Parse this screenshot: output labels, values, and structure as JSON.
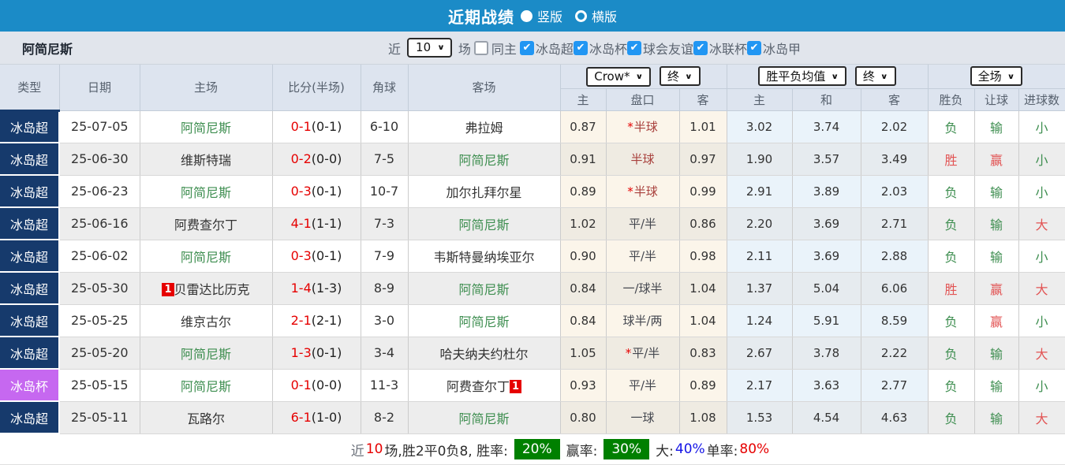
{
  "titlebar": {
    "title": "近期战绩",
    "radio_selected_label": "竖版",
    "radio_unselected_label": "横版"
  },
  "filterbar": {
    "team": "阿简尼斯",
    "near_label": "近",
    "games_value": "10",
    "games_label": "场",
    "same_home": {
      "label": "同主",
      "checked": false
    },
    "leagues": [
      {
        "label": "冰岛超",
        "checked": true
      },
      {
        "label": "冰岛杯",
        "checked": true
      },
      {
        "label": "球会友谊",
        "checked": true
      },
      {
        "label": "冰联杯",
        "checked": true
      },
      {
        "label": "冰岛甲",
        "checked": true
      }
    ]
  },
  "table": {
    "group_headers": [
      "类型",
      "日期",
      "主场",
      "比分(半场)",
      "角球",
      "客场"
    ],
    "selects": {
      "bookmaker": "Crow*",
      "ah_stage": "终",
      "eu_source": "胜平负均值",
      "eu_stage": "终",
      "scope": "全场"
    },
    "sub_headers": [
      "主",
      "盘口",
      "客",
      "主",
      "和",
      "客",
      "胜负",
      "让球",
      "进球数"
    ],
    "rows": [
      {
        "league": "冰岛超",
        "league_class": "super",
        "date": "25-07-05",
        "home": "阿简尼斯",
        "home_self": true,
        "home_badge": "",
        "score": "0-1",
        "half": "(0-1)",
        "corner": "6-10",
        "away": "弗拉姆",
        "away_self": false,
        "away_badge": "",
        "ah_home": "0.87",
        "ah_star": true,
        "ah_line": "半球",
        "ah_red": true,
        "ah_away": "1.01",
        "eu_home": "3.02",
        "eu_draw": "3.74",
        "eu_away": "2.02",
        "res_wdl": "负",
        "wdl_win": false,
        "res_ah": "输",
        "ah_win": false,
        "res_ou": "小",
        "ou_big": false
      },
      {
        "league": "冰岛超",
        "league_class": "super",
        "date": "25-06-30",
        "home": "维斯特瑞",
        "home_self": false,
        "home_badge": "",
        "score": "0-2",
        "half": "(0-0)",
        "corner": "7-5",
        "away": "阿简尼斯",
        "away_self": true,
        "away_badge": "",
        "ah_home": "0.91",
        "ah_star": false,
        "ah_line": "半球",
        "ah_red": true,
        "ah_away": "0.97",
        "eu_home": "1.90",
        "eu_draw": "3.57",
        "eu_away": "3.49",
        "res_wdl": "胜",
        "wdl_win": true,
        "res_ah": "赢",
        "ah_win": true,
        "res_ou": "小",
        "ou_big": false
      },
      {
        "league": "冰岛超",
        "league_class": "super",
        "date": "25-06-23",
        "home": "阿简尼斯",
        "home_self": true,
        "home_badge": "",
        "score": "0-3",
        "half": "(0-1)",
        "corner": "10-7",
        "away": "加尔扎拜尔星",
        "away_self": false,
        "away_badge": "",
        "ah_home": "0.89",
        "ah_star": true,
        "ah_line": "半球",
        "ah_red": true,
        "ah_away": "0.99",
        "eu_home": "2.91",
        "eu_draw": "3.89",
        "eu_away": "2.03",
        "res_wdl": "负",
        "wdl_win": false,
        "res_ah": "输",
        "ah_win": false,
        "res_ou": "小",
        "ou_big": false
      },
      {
        "league": "冰岛超",
        "league_class": "super",
        "date": "25-06-16",
        "home": "阿费查尔丁",
        "home_self": false,
        "home_badge": "",
        "score": "4-1",
        "half": "(1-1)",
        "corner": "7-3",
        "away": "阿简尼斯",
        "away_self": true,
        "away_badge": "",
        "ah_home": "1.02",
        "ah_star": false,
        "ah_line": "平/半",
        "ah_red": false,
        "ah_away": "0.86",
        "eu_home": "2.20",
        "eu_draw": "3.69",
        "eu_away": "2.71",
        "res_wdl": "负",
        "wdl_win": false,
        "res_ah": "输",
        "ah_win": false,
        "res_ou": "大",
        "ou_big": true
      },
      {
        "league": "冰岛超",
        "league_class": "super",
        "date": "25-06-02",
        "home": "阿简尼斯",
        "home_self": true,
        "home_badge": "",
        "score": "0-3",
        "half": "(0-1)",
        "corner": "7-9",
        "away": "韦斯特曼纳埃亚尔",
        "away_self": false,
        "away_badge": "",
        "ah_home": "0.90",
        "ah_star": false,
        "ah_line": "平/半",
        "ah_red": false,
        "ah_away": "0.98",
        "eu_home": "2.11",
        "eu_draw": "3.69",
        "eu_away": "2.88",
        "res_wdl": "负",
        "wdl_win": false,
        "res_ah": "输",
        "ah_win": false,
        "res_ou": "小",
        "ou_big": false
      },
      {
        "league": "冰岛超",
        "league_class": "super",
        "date": "25-05-30",
        "home": "贝雷达比历克",
        "home_self": false,
        "home_badge": "1",
        "score": "1-4",
        "half": "(1-3)",
        "corner": "8-9",
        "away": "阿简尼斯",
        "away_self": true,
        "away_badge": "",
        "ah_home": "0.84",
        "ah_star": false,
        "ah_line": "一/球半",
        "ah_red": false,
        "ah_away": "1.04",
        "eu_home": "1.37",
        "eu_draw": "5.04",
        "eu_away": "6.06",
        "res_wdl": "胜",
        "wdl_win": true,
        "res_ah": "赢",
        "ah_win": true,
        "res_ou": "大",
        "ou_big": true
      },
      {
        "league": "冰岛超",
        "league_class": "super",
        "date": "25-05-25",
        "home": "维京古尔",
        "home_self": false,
        "home_badge": "",
        "score": "2-1",
        "half": "(2-1)",
        "corner": "3-0",
        "away": "阿简尼斯",
        "away_self": true,
        "away_badge": "",
        "ah_home": "0.84",
        "ah_star": false,
        "ah_line": "球半/两",
        "ah_red": false,
        "ah_away": "1.04",
        "eu_home": "1.24",
        "eu_draw": "5.91",
        "eu_away": "8.59",
        "res_wdl": "负",
        "wdl_win": false,
        "res_ah": "赢",
        "ah_win": true,
        "res_ou": "小",
        "ou_big": false
      },
      {
        "league": "冰岛超",
        "league_class": "super",
        "date": "25-05-20",
        "home": "阿简尼斯",
        "home_self": true,
        "home_badge": "",
        "score": "1-3",
        "half": "(0-1)",
        "corner": "3-4",
        "away": "哈夫纳夫约杜尔",
        "away_self": false,
        "away_badge": "",
        "ah_home": "1.05",
        "ah_star": true,
        "ah_line": "平/半",
        "ah_red": false,
        "ah_away": "0.83",
        "eu_home": "2.67",
        "eu_draw": "3.78",
        "eu_away": "2.22",
        "res_wdl": "负",
        "wdl_win": false,
        "res_ah": "输",
        "ah_win": false,
        "res_ou": "大",
        "ou_big": true
      },
      {
        "league": "冰岛杯",
        "league_class": "cup",
        "date": "25-05-15",
        "home": "阿简尼斯",
        "home_self": true,
        "home_badge": "",
        "score": "0-1",
        "half": "(0-0)",
        "corner": "11-3",
        "away": "阿费查尔丁",
        "away_self": false,
        "away_badge": "1",
        "ah_home": "0.93",
        "ah_star": false,
        "ah_line": "平/半",
        "ah_red": false,
        "ah_away": "0.89",
        "eu_home": "2.17",
        "eu_draw": "3.63",
        "eu_away": "2.77",
        "res_wdl": "负",
        "wdl_win": false,
        "res_ah": "输",
        "ah_win": false,
        "res_ou": "小",
        "ou_big": false
      },
      {
        "league": "冰岛超",
        "league_class": "super",
        "date": "25-05-11",
        "home": "瓦路尔",
        "home_self": false,
        "home_badge": "",
        "score": "6-1",
        "half": "(1-0)",
        "corner": "8-2",
        "away": "阿简尼斯",
        "away_self": true,
        "away_badge": "",
        "ah_home": "0.80",
        "ah_star": false,
        "ah_line": "一球",
        "ah_red": false,
        "ah_away": "1.08",
        "eu_home": "1.53",
        "eu_draw": "4.54",
        "eu_away": "4.63",
        "res_wdl": "负",
        "wdl_win": false,
        "res_ah": "输",
        "ah_win": false,
        "res_ou": "大",
        "ou_big": true
      }
    ]
  },
  "footer": {
    "segments": [
      {
        "text": "近",
        "style": "muted"
      },
      {
        "text": "10",
        "style": "red"
      },
      {
        "text": "场,胜2平0负8, 胜率:",
        "style": "dark"
      },
      {
        "text": "20%",
        "style": "badge-green"
      },
      {
        "text": "赢率:",
        "style": "dark"
      },
      {
        "text": "30%",
        "style": "badge-green"
      },
      {
        "text": "大:",
        "style": "dark"
      },
      {
        "text": "40%",
        "style": "blue"
      },
      {
        "text": " 单率:",
        "style": "dark"
      },
      {
        "text": "80%",
        "style": "red"
      }
    ]
  },
  "colors": {
    "topbar_blue": "#1b8bc7",
    "league_super": "#163a6c",
    "league_cup": "#c668f0",
    "team_self_green": "#3e8e50",
    "score_red": "#e60000",
    "result_red": "#e25454",
    "checkbox_blue": "#2196f3",
    "badge_green_bg": "#008000"
  }
}
